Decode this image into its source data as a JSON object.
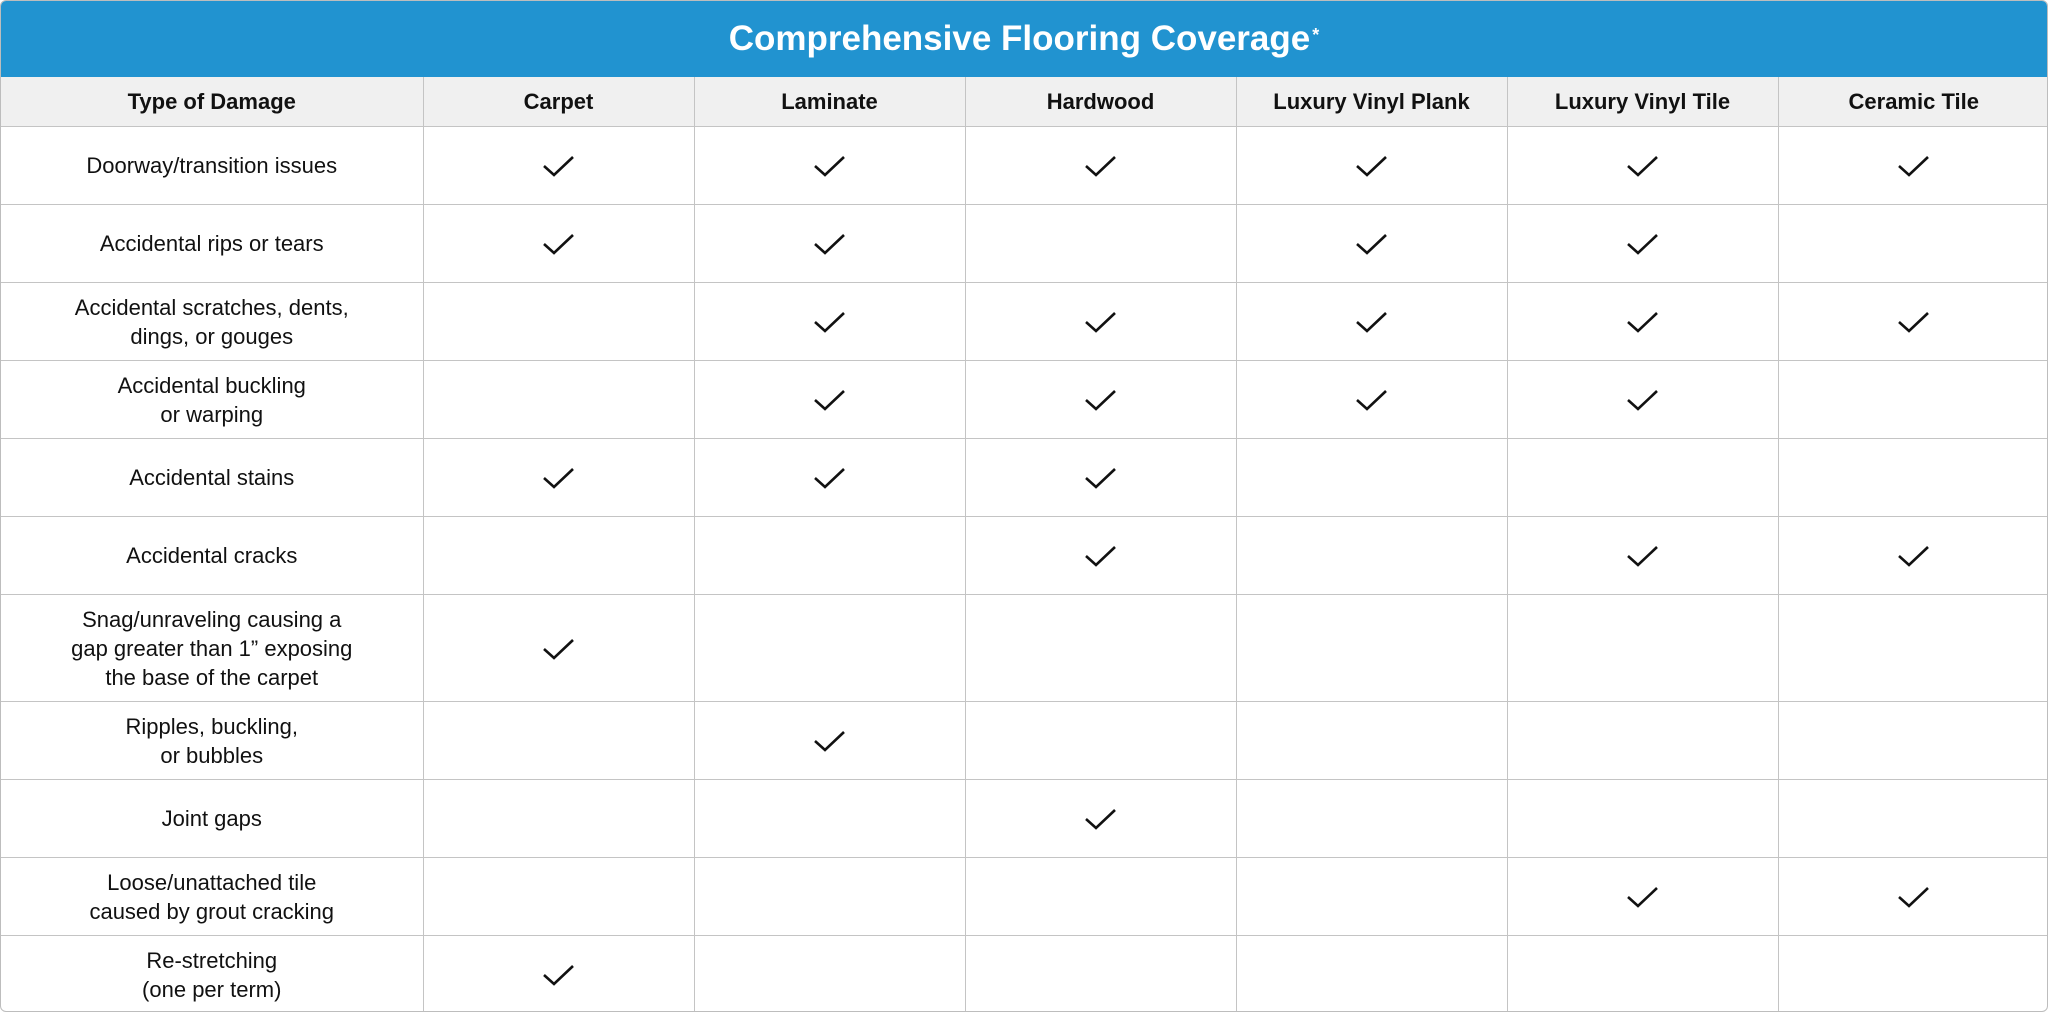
{
  "title": "Comprehensive Flooring Coverage",
  "title_mark": "*",
  "colors": {
    "header_bar": "#2193d0",
    "column_header_bg": "#f0f0f0",
    "border": "#c4c4c4"
  },
  "check_icon": "checkmark-icon",
  "columns": [
    "Type of Damage",
    "Carpet",
    "Laminate",
    "Hardwood",
    "Luxury Vinyl Plank",
    "Luxury Vinyl Tile",
    "Ceramic Tile"
  ],
  "rows": [
    {
      "label": "Doorway/transition issues",
      "covered": [
        true,
        true,
        true,
        true,
        true,
        true
      ]
    },
    {
      "label": "Accidental rips or tears",
      "covered": [
        true,
        true,
        false,
        true,
        true,
        false
      ]
    },
    {
      "label": "Accidental scratches, dents,\ndings, or gouges",
      "covered": [
        false,
        true,
        true,
        true,
        true,
        true
      ]
    },
    {
      "label": "Accidental buckling\nor warping",
      "covered": [
        false,
        true,
        true,
        true,
        true,
        false
      ]
    },
    {
      "label": "Accidental stains",
      "covered": [
        true,
        true,
        true,
        false,
        false,
        false
      ]
    },
    {
      "label": "Accidental cracks",
      "covered": [
        false,
        false,
        true,
        false,
        true,
        true
      ]
    },
    {
      "label": "Snag/unraveling causing a\ngap greater than 1” exposing\nthe base of the carpet",
      "covered": [
        true,
        false,
        false,
        false,
        false,
        false
      ]
    },
    {
      "label": "Ripples, buckling,\nor bubbles",
      "covered": [
        false,
        true,
        false,
        false,
        false,
        false
      ]
    },
    {
      "label": "Joint gaps",
      "covered": [
        false,
        false,
        true,
        false,
        false,
        false
      ]
    },
    {
      "label": "Loose/unattached tile\ncaused by grout cracking",
      "covered": [
        false,
        false,
        false,
        false,
        true,
        true
      ]
    },
    {
      "label": "Re-stretching\n(one per term)",
      "covered": [
        true,
        false,
        false,
        false,
        false,
        false
      ]
    }
  ]
}
